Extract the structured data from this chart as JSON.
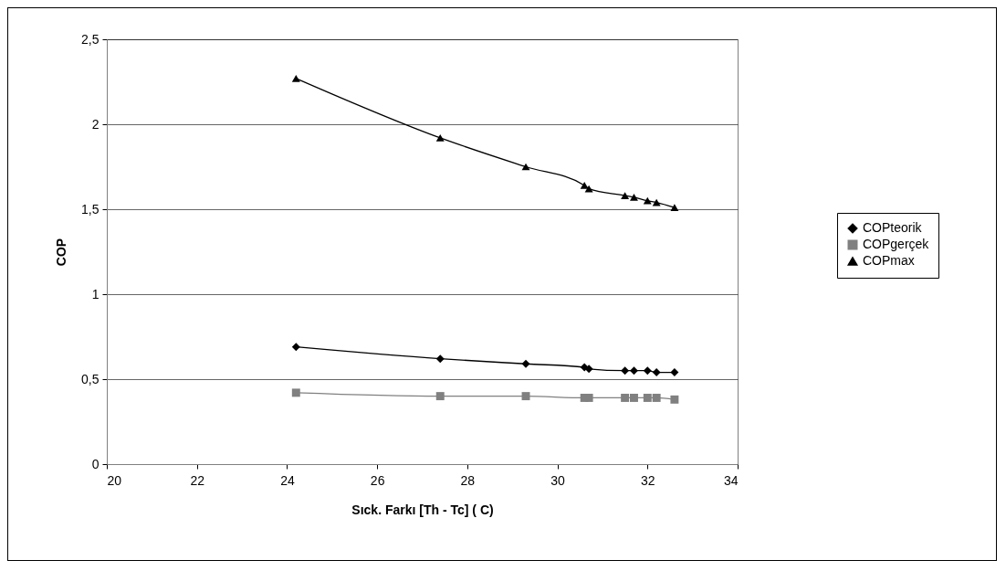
{
  "chart_data": {
    "type": "line",
    "xlabel": "Sıck. Farkı [Th - Tc] ( C)",
    "ylabel": "COP",
    "x": [
      24.2,
      27.4,
      29.3,
      30.6,
      30.7,
      31.5,
      31.7,
      32.0,
      32.2,
      32.6
    ],
    "series": [
      {
        "name": "COPteorik",
        "color": "#000000",
        "marker": "diamond",
        "values": [
          0.69,
          0.62,
          0.59,
          0.57,
          0.56,
          0.55,
          0.55,
          0.55,
          0.54,
          0.54
        ]
      },
      {
        "name": "COPgerçek",
        "color": "#808080",
        "marker": "square",
        "values": [
          0.42,
          0.4,
          0.4,
          0.39,
          0.39,
          0.39,
          0.39,
          0.39,
          0.39,
          0.38
        ]
      },
      {
        "name": "COPmax",
        "color": "#000000",
        "marker": "triangle",
        "values": [
          2.27,
          1.92,
          1.75,
          1.64,
          1.62,
          1.58,
          1.57,
          1.55,
          1.54,
          1.51
        ]
      }
    ],
    "xlim": [
      20,
      34
    ],
    "xticks": [
      20,
      22,
      24,
      26,
      28,
      30,
      32,
      34
    ],
    "ylim": [
      0,
      2.5
    ],
    "yticks": [
      0,
      {
        "value": 0.5,
        "label": "0,5"
      },
      1,
      {
        "value": 1.5,
        "label": "1,5"
      },
      2,
      {
        "value": 2.5,
        "label": "2,5"
      }
    ],
    "grid": "y",
    "legend": "right",
    "line_style": "solid"
  }
}
